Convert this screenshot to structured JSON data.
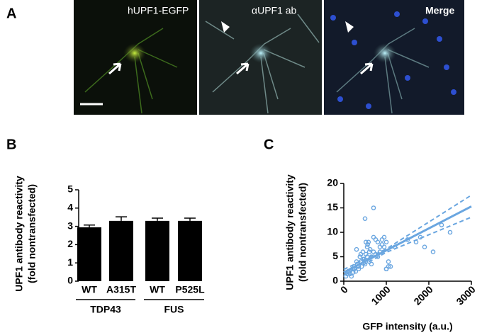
{
  "panel_labels": [
    "A",
    "B",
    "C"
  ],
  "images": [
    {
      "label": "hUPF1-EGFP"
    },
    {
      "label": "αUPF1 ab"
    },
    {
      "label": "Merge"
    }
  ],
  "chart_data": [
    {
      "type": "bar",
      "y_label": [
        "UPF1 antibody reactivity",
        "(fold nontransfected)"
      ],
      "categories": [
        "WT",
        "A315T",
        "WT",
        "P525L"
      ],
      "groups": [
        "TDP43",
        "FUS"
      ],
      "values": [
        2.95,
        3.3,
        3.3,
        3.3
      ],
      "errors": [
        0.12,
        0.22,
        0.15,
        0.15
      ],
      "color": "#000000",
      "ylim": [
        0,
        5
      ],
      "yticks": [
        0,
        1,
        2,
        3,
        4,
        5
      ]
    },
    {
      "type": "scatter",
      "x_label": "GFP intensity (a.u.)",
      "y_label": [
        "UPF1 antibody reactivity",
        "(fold nontransfected)"
      ],
      "color": "#6aa6e0",
      "x": [
        50,
        80,
        100,
        120,
        150,
        180,
        200,
        220,
        250,
        280,
        300,
        320,
        350,
        380,
        400,
        420,
        450,
        480,
        500,
        520,
        550,
        580,
        600,
        620,
        650,
        700,
        750,
        800,
        850,
        900,
        950,
        1000,
        1050,
        1100,
        150,
        250,
        350,
        450,
        550,
        650,
        750,
        850,
        950,
        1050,
        300,
        400,
        500,
        600,
        700,
        800,
        900,
        1000,
        1200,
        1500,
        1700,
        1800,
        1900,
        2100,
        2300,
        2500,
        520,
        560,
        700,
        1000
      ],
      "y": [
        1,
        1.5,
        2,
        1.8,
        2.2,
        1,
        2.5,
        1.8,
        3,
        2,
        4,
        3.5,
        2.5,
        5,
        4,
        3,
        6,
        4.5,
        3.5,
        5.5,
        7,
        8,
        4,
        6.5,
        5,
        6,
        5.5,
        8,
        7,
        8.5,
        9,
        8,
        4,
        3,
        1.5,
        2.5,
        3,
        4.5,
        5,
        3.5,
        8.5,
        6,
        7,
        3,
        6.5,
        5.5,
        12.8,
        6,
        15,
        5,
        7.5,
        2.5,
        7,
        8.5,
        8,
        9,
        7,
        6,
        11.5,
        10,
        8,
        7.5,
        9,
        2.5
      ],
      "fit": {
        "x": [
          0,
          3000
        ],
        "y": [
          1.8,
          15.3
        ]
      },
      "ci_upper": {
        "x": [
          0,
          1000,
          3000
        ],
        "y": [
          2.4,
          6.6,
          17.6
        ]
      },
      "ci_lower": {
        "x": [
          0,
          1000,
          3000
        ],
        "y": [
          1.2,
          5.9,
          13.1
        ]
      },
      "xlim": [
        0,
        3000
      ],
      "xticks": [
        0,
        1000,
        2000,
        3000
      ],
      "ylim": [
        0,
        20
      ],
      "yticks": [
        0,
        5,
        10,
        15,
        20
      ]
    }
  ]
}
